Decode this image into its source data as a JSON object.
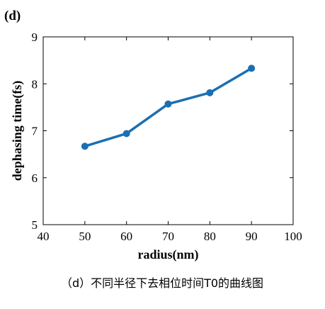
{
  "figure": {
    "panel_label": "(d)",
    "caption": "（d）不同半径下去相位时间T0的曲线图"
  },
  "chart_data": {
    "type": "line",
    "title": "",
    "xlabel": "radius(nm)",
    "ylabel": "dephasing time(fs)",
    "xlim": [
      40,
      100
    ],
    "ylim": [
      5,
      9
    ],
    "xticks": [
      40,
      50,
      60,
      70,
      80,
      90,
      100
    ],
    "yticks": [
      5,
      6,
      7,
      8,
      9
    ],
    "grid": false,
    "legend": "none",
    "series": [
      {
        "color": "#1a6fb3",
        "marker": "circle",
        "x": [
          50,
          60,
          70,
          80,
          90
        ],
        "y": [
          6.67,
          6.94,
          7.57,
          7.81,
          8.33
        ]
      }
    ]
  }
}
